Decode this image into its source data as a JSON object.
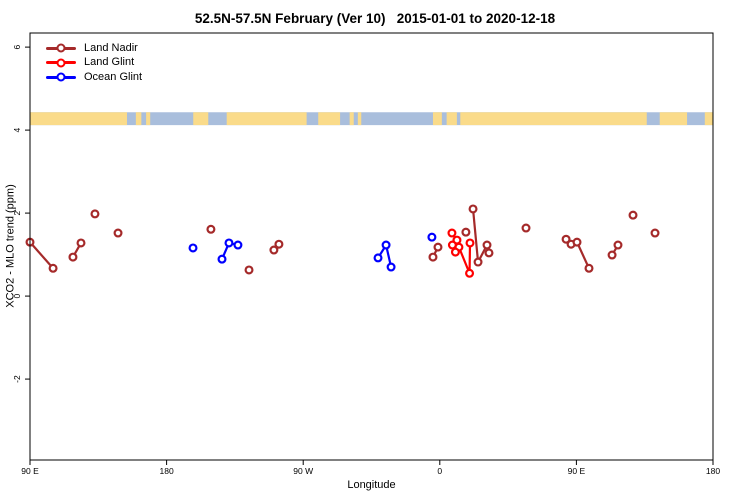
{
  "chart_data": {
    "type": "scatter",
    "title": "52.5N-57.5N February (Ver 10)   2015-01-01 to 2020-12-18",
    "xlabel": "Longitude",
    "ylabel": "XCO2 - MLO trend (ppm)",
    "grid": false,
    "legend_position": "top-left",
    "x_axis": {
      "unwrapped_degree_range": [
        90,
        540
      ],
      "ticks": [
        {
          "deg": 90,
          "label": "90 E"
        },
        {
          "deg": 180,
          "label": "180"
        },
        {
          "deg": 270,
          "label": "90 W"
        },
        {
          "deg": 360,
          "label": "0"
        },
        {
          "deg": 450,
          "label": "90 E"
        },
        {
          "deg": 540,
          "label": "180"
        }
      ]
    },
    "y_axis": {
      "range": [
        -3.95,
        6.34
      ],
      "ticks": [
        {
          "v": 6,
          "label": "6"
        },
        {
          "v": 4,
          "label": "4"
        },
        {
          "v": 2,
          "label": "2"
        },
        {
          "v": 0,
          "label": "0"
        },
        {
          "v": -2,
          "label": "-2"
        }
      ]
    },
    "map_strip": {
      "description": "land/ocean mask band",
      "y_top_value": 4.43,
      "y_bottom_value": 4.12,
      "ocean_color": "#A9BEDC",
      "land_color": "#FADB8A",
      "land_segments_frac": [
        [
          0.0,
          0.142
        ],
        [
          0.155,
          0.163
        ],
        [
          0.17,
          0.176
        ],
        [
          0.239,
          0.261
        ],
        [
          0.288,
          0.405
        ],
        [
          0.422,
          0.454
        ],
        [
          0.468,
          0.474
        ],
        [
          0.48,
          0.485
        ],
        [
          0.59,
          0.603
        ],
        [
          0.61,
          0.625
        ],
        [
          0.63,
          0.903
        ],
        [
          0.922,
          0.962
        ],
        [
          0.988,
          1.0
        ]
      ]
    },
    "series": [
      {
        "name": "Land Nadir",
        "color": "#A52A2A",
        "points": [
          {
            "deg": 90.0,
            "v": 1.3
          },
          {
            "deg": 105.2,
            "v": 0.67
          },
          {
            "deg": 118.3,
            "v": 0.94
          },
          {
            "deg": 123.6,
            "v": 1.28
          },
          {
            "deg": 132.8,
            "v": 1.98
          },
          {
            "deg": 148.0,
            "v": 1.52
          },
          {
            "deg": 209.2,
            "v": 1.61
          },
          {
            "deg": 234.3,
            "v": 0.63
          },
          {
            "deg": 250.7,
            "v": 1.11
          },
          {
            "deg": 254.0,
            "v": 1.25
          },
          {
            "deg": 358.8,
            "v": 1.18
          },
          {
            "deg": 355.5,
            "v": 0.94
          },
          {
            "deg": 377.2,
            "v": 1.54
          },
          {
            "deg": 381.9,
            "v": 2.1
          },
          {
            "deg": 385.2,
            "v": 0.82
          },
          {
            "deg": 391.1,
            "v": 1.23
          },
          {
            "deg": 392.4,
            "v": 1.04
          },
          {
            "deg": 416.8,
            "v": 1.64
          },
          {
            "deg": 443.2,
            "v": 1.37
          },
          {
            "deg": 446.5,
            "v": 1.25
          },
          {
            "deg": 450.4,
            "v": 1.3
          },
          {
            "deg": 458.3,
            "v": 0.67
          },
          {
            "deg": 473.5,
            "v": 0.99
          },
          {
            "deg": 477.4,
            "v": 1.23
          },
          {
            "deg": 487.3,
            "v": 1.95
          },
          {
            "deg": 501.8,
            "v": 1.52
          }
        ],
        "segments": [
          [
            0,
            1
          ],
          [
            2,
            3
          ],
          [
            8,
            9
          ],
          [
            10,
            11
          ],
          [
            13,
            14
          ],
          [
            14,
            15
          ],
          [
            20,
            21
          ],
          [
            22,
            23
          ]
        ]
      },
      {
        "name": "Land Glint",
        "color": "#FF0000",
        "points": [
          {
            "deg": 368.0,
            "v": 1.52
          },
          {
            "deg": 371.3,
            "v": 1.35
          },
          {
            "deg": 368.3,
            "v": 1.23
          },
          {
            "deg": 372.6,
            "v": 1.18
          },
          {
            "deg": 370.3,
            "v": 1.06
          },
          {
            "deg": 379.9,
            "v": 1.28
          },
          {
            "deg": 379.6,
            "v": 0.55
          }
        ],
        "segments": [
          [
            1,
            3
          ],
          [
            3,
            6
          ],
          [
            6,
            5
          ]
        ]
      },
      {
        "name": "Ocean Glint",
        "color": "#0000FF",
        "points": [
          {
            "deg": 197.4,
            "v": 1.16
          },
          {
            "deg": 216.5,
            "v": 0.89
          },
          {
            "deg": 221.1,
            "v": 1.28
          },
          {
            "deg": 227.0,
            "v": 1.23
          },
          {
            "deg": 319.3,
            "v": 0.92
          },
          {
            "deg": 324.6,
            "v": 1.23
          },
          {
            "deg": 327.9,
            "v": 0.7
          },
          {
            "deg": 354.8,
            "v": 1.42
          }
        ],
        "segments": [
          [
            1,
            2
          ],
          [
            2,
            3
          ],
          [
            4,
            5
          ],
          [
            5,
            6
          ]
        ]
      }
    ]
  }
}
